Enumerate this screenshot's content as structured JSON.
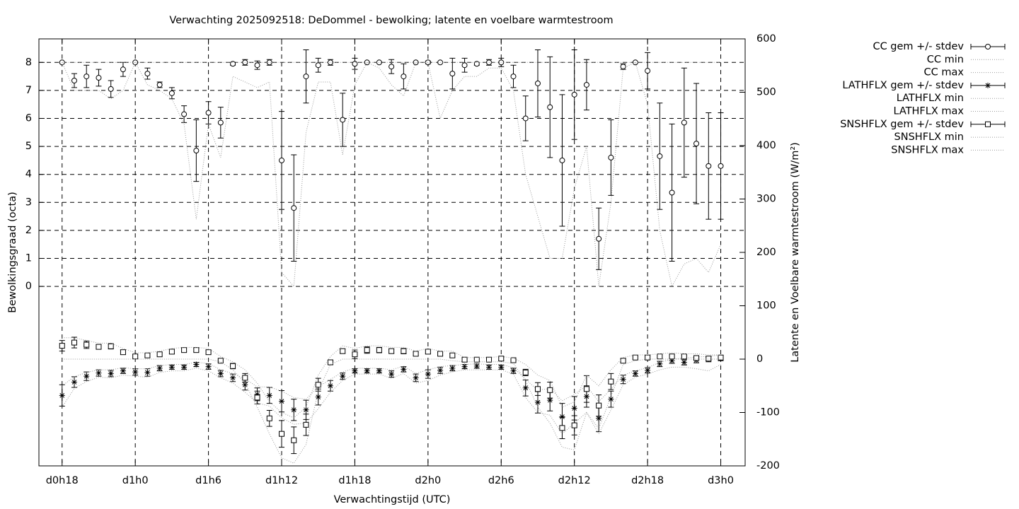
{
  "chart_data": {
    "type": "errorbar",
    "title": "Verwachting 2025092518: DeDommel - bewolking; latente en voelbare warmtestroom",
    "x_label": "Verwachtingstijd (UTC)",
    "y_label": "Bewolkingsgraad (octa)",
    "y2_label": "Latente en Voelbare warmtestroom (W/m²)",
    "x": [
      18,
      19,
      20,
      21,
      22,
      23,
      24,
      25,
      26,
      27,
      28,
      29,
      30,
      31,
      32,
      33,
      34,
      35,
      36,
      37,
      38,
      39,
      40,
      41,
      42,
      43,
      44,
      45,
      46,
      47,
      48,
      49,
      50,
      51,
      52,
      53,
      54,
      55,
      56,
      57,
      58,
      59,
      60,
      61,
      62,
      63,
      64,
      65,
      66,
      67,
      68,
      69,
      70,
      71,
      72
    ],
    "xlim": [
      16.1,
      74
    ],
    "xticks": [
      {
        "value": 18,
        "label": "d0h18"
      },
      {
        "value": 24,
        "label": "d1h0"
      },
      {
        "value": 30,
        "label": "d1h6"
      },
      {
        "value": 36,
        "label": "d1h12"
      },
      {
        "value": 42,
        "label": "d1h18"
      },
      {
        "value": 48,
        "label": "d2h0"
      },
      {
        "value": 54,
        "label": "d2h6"
      },
      {
        "value": 60,
        "label": "d2h12"
      },
      {
        "value": 66,
        "label": "d2h18"
      },
      {
        "value": 72,
        "label": "d3h0"
      }
    ],
    "ylim": [
      -6.41,
      8.84
    ],
    "yticks": [
      0,
      1,
      2,
      3,
      4,
      5,
      6,
      7,
      8
    ],
    "y2lim": [
      -200,
      600
    ],
    "y2ticks": [
      -200,
      -100,
      0,
      100,
      200,
      300,
      400,
      500,
      600
    ],
    "grid": true,
    "legend": "outside-right",
    "series": [
      {
        "name": "CC gem +/- stdev",
        "marker": "circle",
        "color": "#000000",
        "values": [
          8,
          7.35,
          7.5,
          7.45,
          7.05,
          7.75,
          8,
          7.6,
          7.2,
          6.9,
          6.15,
          4.85,
          6.2,
          5.85,
          7.95,
          8,
          7.9,
          8,
          4.5,
          2.8,
          7.5,
          7.9,
          8,
          5.95,
          7.95,
          8,
          8,
          7.85,
          7.5,
          8,
          8,
          8,
          7.6,
          7.9,
          7.95,
          8,
          8,
          7.5,
          6,
          7.25,
          6.4,
          4.5,
          6.85,
          7.2,
          1.7,
          4.6,
          7.85,
          8,
          7.7,
          4.65,
          3.35,
          5.85,
          5.1,
          4.3,
          4.3
        ],
        "errors": [
          0,
          0.25,
          0.4,
          0.3,
          0.3,
          0.25,
          0,
          0.2,
          0.1,
          0.2,
          0.3,
          1.1,
          0.4,
          0.55,
          0.05,
          0.1,
          0.15,
          0.1,
          1.75,
          1.9,
          0.95,
          0.25,
          0.1,
          0.95,
          0.2,
          0,
          0,
          0.25,
          0.45,
          0,
          0.05,
          0,
          0.55,
          0.25,
          0.05,
          0.1,
          0.15,
          0.4,
          0.8,
          1.2,
          1.8,
          2.35,
          1.6,
          0.9,
          1.1,
          1.35,
          0.1,
          0,
          0.65,
          1.9,
          2.45,
          1.95,
          2.15,
          1.9,
          1.9
        ]
      },
      {
        "name": "CC min",
        "marker": "dotted",
        "color": "#000000",
        "values": [
          8,
          7,
          7,
          7,
          6.7,
          7,
          8,
          7.2,
          7,
          6.7,
          5.8,
          2.4,
          5.8,
          4.6,
          7.5,
          7.3,
          7.1,
          7.3,
          0.5,
          0,
          5.5,
          7.3,
          7.3,
          4.7,
          7.2,
          8,
          7.8,
          7.2,
          6.8,
          8,
          8,
          6,
          7,
          7.5,
          7.5,
          7.8,
          7.8,
          7,
          4,
          2.5,
          1,
          1,
          3.5,
          5,
          0,
          3,
          7.8,
          8,
          6.5,
          2,
          0,
          0.8,
          1,
          0.5,
          1.5
        ]
      },
      {
        "name": "CC max",
        "marker": "dotted",
        "color": "#000000",
        "values": [
          8,
          8,
          8,
          8,
          8,
          8,
          8,
          8,
          8,
          8,
          8,
          8,
          8,
          8,
          8,
          8,
          8,
          8,
          8,
          8,
          8,
          8,
          8,
          8,
          8,
          8,
          8,
          8,
          8,
          8,
          8,
          8,
          8,
          8,
          8,
          8,
          8,
          8,
          8,
          8,
          8,
          8,
          8,
          8,
          8,
          8,
          8,
          8,
          8,
          8,
          8,
          8,
          8,
          8,
          8
        ]
      },
      {
        "name": "LATHFLX gem +/- stdev",
        "marker": "star",
        "color": "#000000",
        "axis": "y2",
        "values": [
          -68,
          -43,
          -32,
          -26,
          -27,
          -22,
          -24,
          -25,
          -17,
          -15,
          -15,
          -10,
          -14,
          -27,
          -35,
          -48,
          -66,
          -68,
          -79,
          -95,
          -95,
          -71,
          -50,
          -32,
          -22,
          -22,
          -22,
          -28,
          -19,
          -35,
          -28,
          -21,
          -17,
          -14,
          -13,
          -15,
          -15,
          -22,
          -54,
          -81,
          -77,
          -108,
          -92,
          -70,
          -111,
          -75,
          -38,
          -27,
          -21,
          -9,
          -3,
          -6,
          -2,
          0,
          2
        ],
        "errors": [
          20,
          10,
          8,
          6,
          6,
          5,
          6,
          7,
          5,
          4,
          4,
          4,
          5,
          6,
          7,
          10,
          12,
          15,
          20,
          20,
          18,
          15,
          10,
          6,
          4,
          4,
          4,
          6,
          5,
          7,
          8,
          6,
          5,
          4,
          4,
          4,
          4,
          5,
          15,
          20,
          20,
          25,
          22,
          20,
          25,
          15,
          8,
          5,
          5,
          5,
          5,
          5,
          5,
          5,
          5
        ]
      },
      {
        "name": "LATHFLX min",
        "marker": "dotted",
        "color": "#000000",
        "axis": "y2",
        "values": [
          -90,
          -55,
          -42,
          -34,
          -35,
          -30,
          -32,
          -34,
          -25,
          -22,
          -22,
          -17,
          -22,
          -35,
          -45,
          -62,
          -82,
          -88,
          -110,
          -122,
          -120,
          -93,
          -62,
          -40,
          -28,
          -28,
          -28,
          -36,
          -27,
          -45,
          -40,
          -30,
          -24,
          -20,
          -20,
          -20,
          -20,
          -28,
          -72,
          -100,
          -105,
          -140,
          -120,
          -100,
          -140,
          -95,
          -48,
          -34,
          -28,
          -20,
          -15,
          -15,
          -18,
          -22,
          -10
        ]
      },
      {
        "name": "LATHFLX max",
        "marker": "dotted",
        "color": "#000000",
        "axis": "y2",
        "values": [
          -50,
          -33,
          -25,
          -20,
          -20,
          -16,
          -18,
          -18,
          -12,
          -10,
          -10,
          -6,
          -8,
          -20,
          -27,
          -37,
          -52,
          -52,
          -60,
          -72,
          -75,
          -52,
          -38,
          -24,
          -17,
          -17,
          -17,
          -20,
          -13,
          -27,
          -20,
          -14,
          -12,
          -10,
          -9,
          -10,
          -10,
          -16,
          -38,
          -58,
          -55,
          -78,
          -66,
          -50,
          -80,
          -56,
          -30,
          -22,
          -16,
          -6,
          0,
          2,
          4,
          5,
          8
        ]
      },
      {
        "name": "SNSHFLX gem +/- stdev",
        "marker": "square",
        "color": "#000000",
        "axis": "y2",
        "values": [
          25,
          31,
          27,
          23,
          24,
          13,
          5,
          7,
          9,
          14,
          17,
          17,
          13,
          -3,
          -13,
          -35,
          -72,
          -111,
          -140,
          -152,
          -123,
          -48,
          -6,
          15,
          9,
          17,
          17,
          15,
          15,
          10,
          14,
          10,
          7,
          -1,
          -1,
          -1,
          1,
          -2,
          -25,
          -56,
          -58,
          -129,
          -124,
          -56,
          -87,
          -42,
          -3,
          3,
          3,
          5,
          5,
          5,
          2,
          1,
          3
        ],
        "errors": [
          10,
          10,
          7,
          4,
          5,
          4,
          3,
          3,
          3,
          4,
          3,
          3,
          3,
          3,
          5,
          8,
          12,
          15,
          25,
          25,
          20,
          12,
          4,
          4,
          8,
          6,
          5,
          4,
          5,
          3,
          3,
          3,
          3,
          3,
          3,
          3,
          3,
          3,
          6,
          12,
          15,
          20,
          18,
          25,
          20,
          15,
          3,
          3,
          3,
          3,
          3,
          3,
          3,
          3,
          3
        ]
      },
      {
        "name": "SNSHFLX min",
        "marker": "dotted",
        "color": "#000000",
        "axis": "y2",
        "values": [
          0,
          0,
          0,
          0,
          0,
          0,
          0,
          0,
          0,
          0,
          0,
          0,
          0,
          -5,
          -20,
          -45,
          -90,
          -140,
          -185,
          -195,
          -160,
          -60,
          -10,
          0,
          0,
          0,
          0,
          0,
          0,
          0,
          0,
          0,
          -3,
          -5,
          -5,
          -5,
          -5,
          -8,
          -40,
          -90,
          -120,
          -165,
          -170,
          -100,
          -130,
          -70,
          -10,
          -3,
          0,
          0,
          0,
          0,
          0,
          0,
          0
        ]
      },
      {
        "name": "SNSHFLX max",
        "marker": "dotted",
        "color": "#000000",
        "axis": "y2",
        "values": [
          40,
          40,
          35,
          30,
          30,
          20,
          12,
          12,
          15,
          20,
          22,
          22,
          20,
          5,
          -5,
          -20,
          -45,
          -80,
          -100,
          -110,
          -90,
          -30,
          5,
          25,
          20,
          25,
          25,
          22,
          22,
          15,
          20,
          15,
          15,
          3,
          3,
          3,
          5,
          2,
          -10,
          -30,
          -40,
          -90,
          -80,
          -30,
          -50,
          -20,
          3,
          8,
          8,
          10,
          12,
          10,
          10,
          8,
          8
        ]
      }
    ]
  }
}
